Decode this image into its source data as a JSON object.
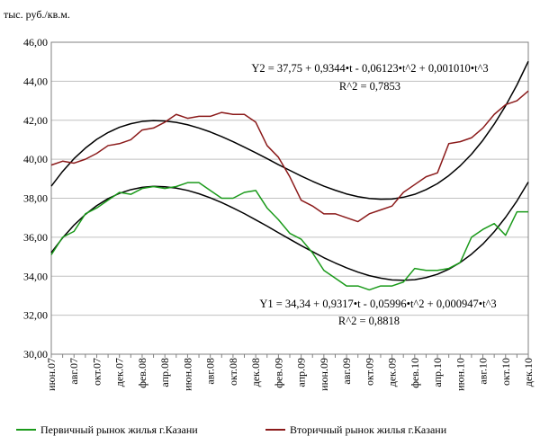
{
  "chart_data": {
    "type": "line",
    "y_axis_label": "тыс. руб./кв.м.",
    "categories": [
      "июн.07",
      null,
      "авг.07",
      null,
      "окт.07",
      null,
      "дек.07",
      null,
      "фев.08",
      null,
      "апр.08",
      null,
      "июн.08",
      null,
      "авг.08",
      null,
      "окт.08",
      null,
      "дек.08",
      null,
      "фев.09",
      null,
      "апр.09",
      null,
      "июн.09",
      null,
      "авг.09",
      null,
      "окт.09",
      null,
      "дек.09",
      null,
      "фев.10",
      null,
      "апр.10",
      null,
      "июн.10",
      null,
      "авг.10",
      null,
      "окт.10",
      null,
      "дек.10"
    ],
    "ylim": [
      30,
      46
    ],
    "yticks": [
      {
        "value": 30,
        "label": "30,00"
      },
      {
        "value": 32,
        "label": "32,00"
      },
      {
        "value": 34,
        "label": "34,00"
      },
      {
        "value": 36,
        "label": "36,00"
      },
      {
        "value": 38,
        "label": "38,00"
      },
      {
        "value": 40,
        "label": "40,00"
      },
      {
        "value": 42,
        "label": "42,00"
      },
      {
        "value": 44,
        "label": "44,00"
      },
      {
        "value": 46,
        "label": "46,00"
      }
    ],
    "grid": true,
    "legend": "bottom",
    "series": [
      {
        "name": "Первичный рынок жилья г.Казани",
        "color": "#1a9a1a",
        "values": [
          35.1,
          36.0,
          36.3,
          37.2,
          37.5,
          37.9,
          38.3,
          38.2,
          38.5,
          38.6,
          38.5,
          38.6,
          38.8,
          38.8,
          38.4,
          38.0,
          38.0,
          38.3,
          38.4,
          37.5,
          36.9,
          36.2,
          35.9,
          35.2,
          34.3,
          33.9,
          33.5,
          33.5,
          33.3,
          33.5,
          33.5,
          33.7,
          34.4,
          34.3,
          34.3,
          34.4,
          34.7,
          36.0,
          36.4,
          36.7,
          36.1,
          37.3,
          37.3
        ]
      },
      {
        "name": "Вторичный рынок жилья г.Казани",
        "color": "#8b1a1a",
        "values": [
          39.7,
          39.9,
          39.8,
          40.0,
          40.3,
          40.7,
          40.8,
          41.0,
          41.5,
          41.6,
          41.9,
          42.3,
          42.1,
          42.2,
          42.2,
          42.4,
          42.3,
          42.3,
          41.9,
          40.7,
          40.1,
          39.1,
          37.9,
          37.6,
          37.2,
          37.2,
          37.0,
          36.8,
          37.2,
          37.4,
          37.6,
          38.3,
          38.7,
          39.1,
          39.3,
          40.8,
          40.9,
          41.1,
          41.6,
          42.3,
          42.8,
          43.0,
          43.5
        ]
      }
    ],
    "trendlines": [
      {
        "color": "#000000",
        "equation": "Y1 = 34,34 + 0,9317•t - 0,05996•t^2 + 0,000947•t^3",
        "r2": "R^2 = 0,8818",
        "values": [
          35.21,
          35.97,
          36.62,
          37.17,
          37.62,
          37.98,
          38.25,
          38.44,
          38.56,
          38.61,
          38.59,
          38.52,
          38.4,
          38.23,
          38.02,
          37.78,
          37.5,
          37.21,
          36.89,
          36.57,
          36.23,
          35.9,
          35.57,
          35.26,
          34.95,
          34.68,
          34.43,
          34.21,
          34.03,
          33.9,
          33.81,
          33.79,
          33.82,
          33.93,
          34.1,
          34.36,
          34.7,
          35.13,
          35.65,
          36.28,
          37.02,
          37.86,
          38.83
        ]
      },
      {
        "color": "#000000",
        "equation": "Y2 = 37,75 + 0,9344•t - 0,06123•t^2 + 0,001010•t^3",
        "r2": "R^2 = 0,7853",
        "values": [
          38.62,
          39.38,
          40.03,
          40.57,
          41.02,
          41.37,
          41.64,
          41.82,
          41.94,
          41.98,
          41.96,
          41.89,
          41.77,
          41.6,
          41.4,
          41.16,
          40.9,
          40.62,
          40.33,
          40.03,
          39.72,
          39.43,
          39.14,
          38.87,
          38.62,
          38.41,
          38.22,
          38.08,
          37.99,
          37.95,
          37.96,
          38.05,
          38.2,
          38.44,
          38.75,
          39.16,
          39.66,
          40.26,
          40.97,
          41.8,
          42.74,
          43.81,
          45.02
        ]
      }
    ]
  }
}
